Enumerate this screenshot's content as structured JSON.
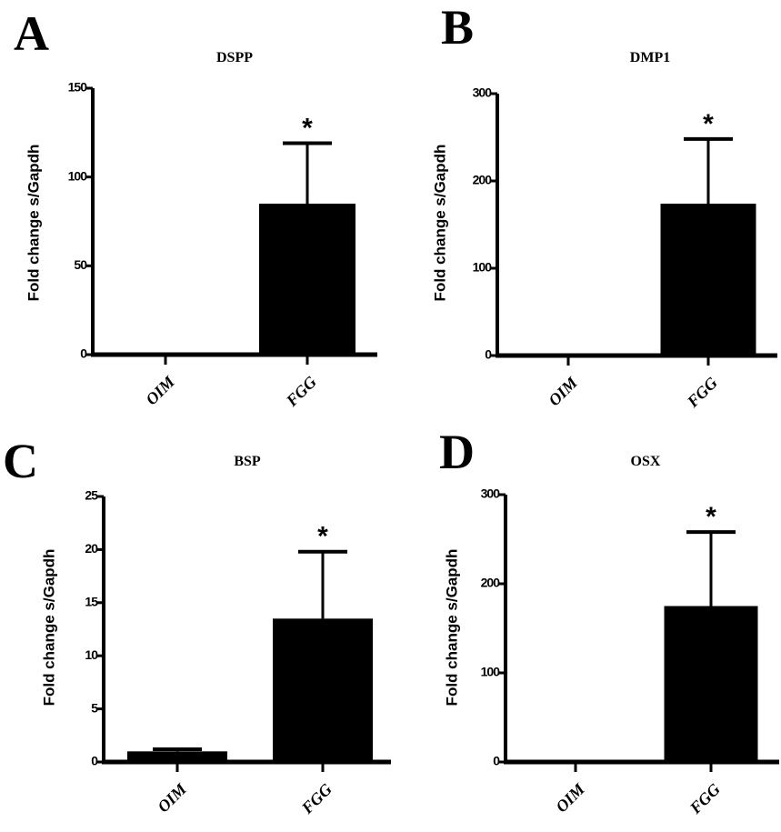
{
  "colors": {
    "bar": "#000000",
    "axis": "#000000",
    "background": "#ffffff"
  },
  "chart_data": [
    {
      "panel": "A",
      "type": "bar",
      "title": "DSPP",
      "xlabel": "",
      "ylabel": "Fold change s/Gapdh",
      "categories": [
        "OIM",
        "FGG"
      ],
      "values": [
        1,
        85
      ],
      "error_upper": [
        1.2,
        119
      ],
      "significance": [
        "",
        "*"
      ],
      "ylim": [
        0,
        150
      ],
      "yticks": [
        0,
        50,
        100,
        150
      ],
      "grid": false
    },
    {
      "panel": "B",
      "type": "bar",
      "title": "DMP1",
      "xlabel": "",
      "ylabel": "Fold change s/Gapdh",
      "categories": [
        "OIM",
        "FGG"
      ],
      "values": [
        1,
        174
      ],
      "error_upper": [
        1.5,
        248
      ],
      "significance": [
        "",
        "*"
      ],
      "ylim": [
        0,
        300
      ],
      "yticks": [
        0,
        100,
        200,
        300
      ],
      "grid": false
    },
    {
      "panel": "C",
      "type": "bar",
      "title": "BSP",
      "xlabel": "",
      "ylabel": "Fold change s/Gapdh",
      "categories": [
        "OIM",
        "FGG"
      ],
      "values": [
        1.0,
        13.5
      ],
      "error_upper": [
        1.2,
        19.8
      ],
      "significance": [
        "",
        "*"
      ],
      "ylim": [
        0,
        25
      ],
      "yticks": [
        0,
        5,
        10,
        15,
        20,
        25
      ],
      "grid": false
    },
    {
      "panel": "D",
      "type": "bar",
      "title": "OSX",
      "xlabel": "",
      "ylabel": "Fold change s/Gapdh",
      "categories": [
        "OIM",
        "FGG"
      ],
      "values": [
        1,
        175
      ],
      "error_upper": [
        1.5,
        258
      ],
      "significance": [
        "",
        "*"
      ],
      "ylim": [
        0,
        300
      ],
      "yticks": [
        0,
        100,
        200,
        300
      ],
      "grid": false
    }
  ]
}
